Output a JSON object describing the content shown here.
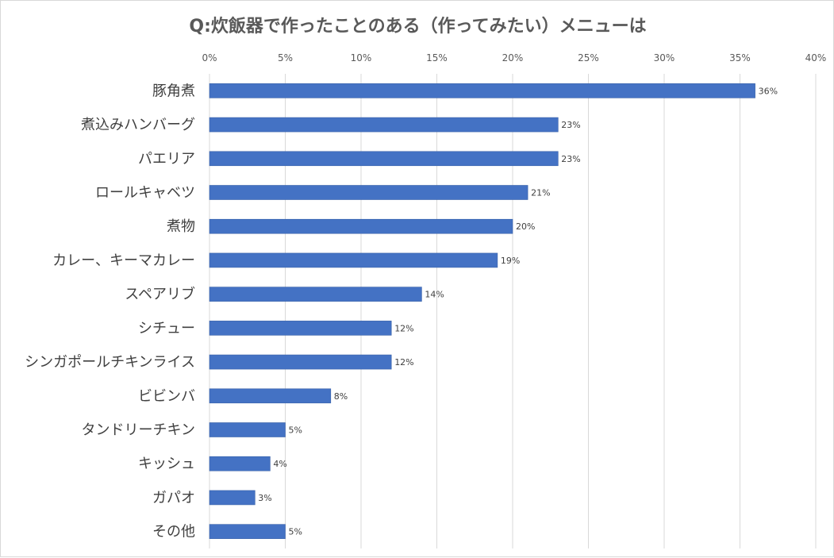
{
  "chart_data": {
    "type": "bar",
    "orientation": "horizontal",
    "title": "Q:炊飯器で作ったことのある（作ってみたい）メニューは",
    "xlabel": "",
    "ylabel": "",
    "xlim": [
      0,
      40
    ],
    "x_ticks": [
      "0%",
      "5%",
      "10%",
      "15%",
      "20%",
      "25%",
      "30%",
      "35%",
      "40%"
    ],
    "x_tick_values": [
      0,
      5,
      10,
      15,
      20,
      25,
      30,
      35,
      40
    ],
    "grid": true,
    "legend": "none",
    "bar_color": "#4472c4",
    "categories": [
      "豚角煮",
      "煮込みハンバーグ",
      "パエリア",
      "ロールキャベツ",
      "煮物",
      "カレー、キーマカレー",
      "スペアリブ",
      "シチュー",
      "シンガポールチキンライス",
      "ビビンバ",
      "タンドリーチキン",
      "キッシュ",
      "ガパオ",
      "その他"
    ],
    "values": [
      36,
      23,
      23,
      21,
      20,
      19,
      14,
      12,
      12,
      8,
      5,
      4,
      3,
      5
    ],
    "data_labels": [
      "36%",
      "23%",
      "23%",
      "21%",
      "20%",
      "19%",
      "14%",
      "12%",
      "12%",
      "8%",
      "5%",
      "4%",
      "3%",
      "5%"
    ]
  }
}
